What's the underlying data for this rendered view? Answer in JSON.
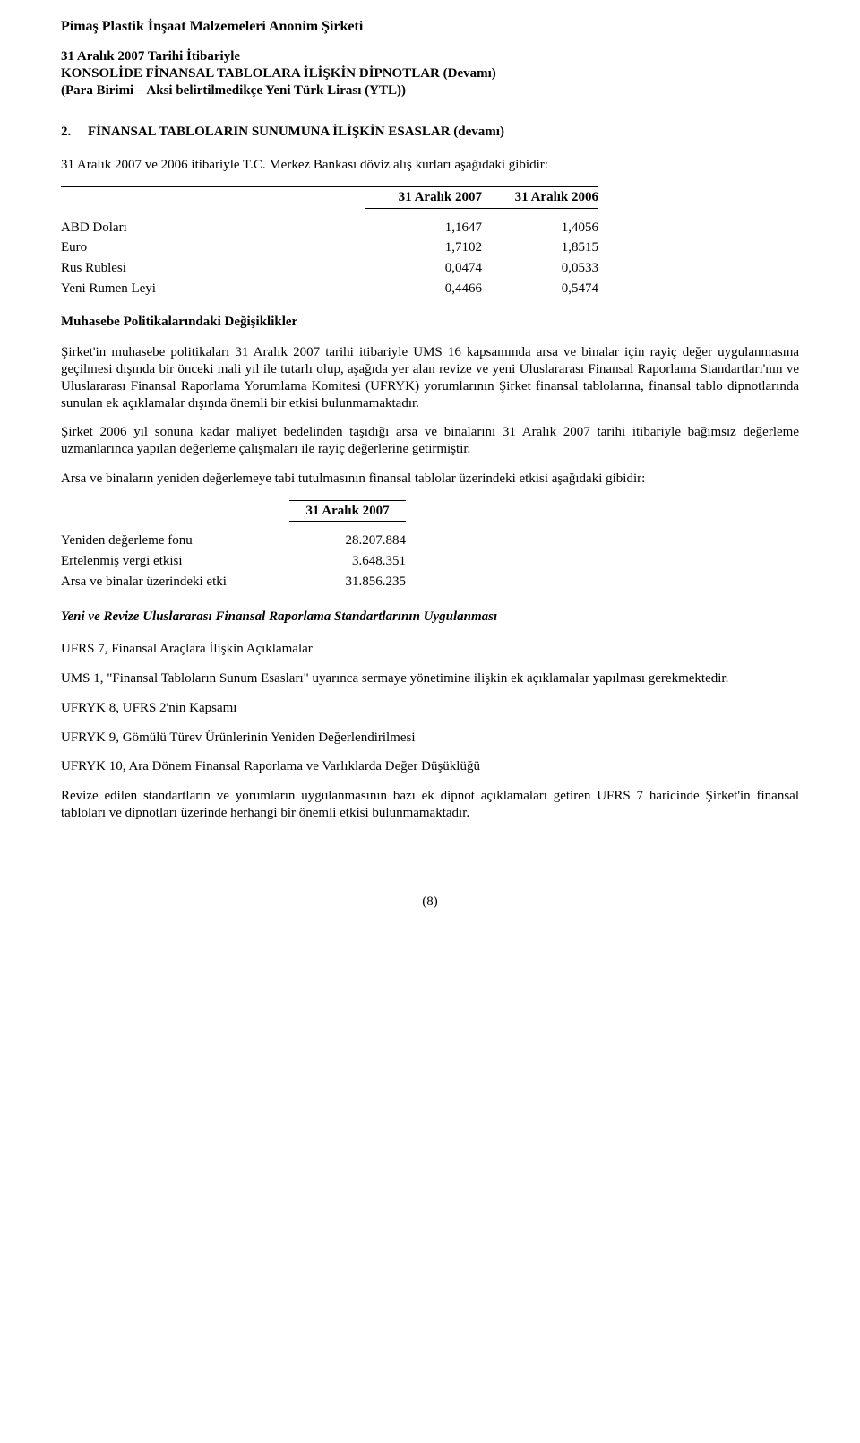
{
  "header": {
    "company": "Pimaş Plastik İnşaat Malzemeleri Anonim Şirketi",
    "line1": "31 Aralık 2007 Tarihi İtibariyle",
    "line2": "KONSOLİDE FİNANSAL TABLOLARA İLİŞKİN DİPNOTLAR (Devamı)",
    "line3": "(Para Birimi – Aksi belirtilmedikçe Yeni Türk Lirası (YTL))"
  },
  "section": {
    "num": "2.",
    "title": "FİNANSAL TABLOLARIN SUNUMUNA İLİŞKİN ESASLAR (devamı)"
  },
  "intro_line": "31 Aralık 2007 ve 2006 itibariyle T.C. Merkez Bankası döviz alış kurları aşağıdaki gibidir:",
  "curr_table": {
    "head_c1": "31 Aralık 2007",
    "head_c2": "31 Aralık 2006",
    "rows": [
      {
        "label": "ABD Doları",
        "v1": "1,1647",
        "v2": "1,4056"
      },
      {
        "label": "Euro",
        "v1": "1,7102",
        "v2": "1,8515"
      },
      {
        "label": "Rus Rublesi",
        "v1": "0,0474",
        "v2": "0,0533"
      },
      {
        "label": "Yeni Rumen Leyi",
        "v1": "0,4466",
        "v2": "0,5474"
      }
    ]
  },
  "muhasebe_heading": "Muhasebe Politikalarındaki Değişiklikler",
  "para1": "Şirket'in muhasebe politikaları 31 Aralık 2007 tarihi itibariyle UMS 16 kapsamında arsa ve binalar için rayiç değer uygulanmasına geçilmesi dışında bir önceki mali yıl ile tutarlı olup, aşağıda yer alan revize ve yeni Uluslararası Finansal Raporlama Standartları'nın ve Uluslararası Finansal Raporlama Yorumlama Komitesi (UFRYK) yorumlarının Şirket finansal tablolarına, finansal tablo dipnotlarında sunulan ek açıklamalar dışında önemli bir etkisi bulunmamaktadır.",
  "para2": "Şirket 2006 yıl sonuna kadar maliyet bedelinden taşıdığı arsa ve binalarını 31 Aralık 2007 tarihi itibariyle bağımsız değerleme uzmanlarınca yapılan değerleme çalışmaları ile rayiç değerlerine getirmiştir.",
  "para3": "Arsa ve binaların yeniden değerlemeye tabi tutulmasının finansal tablolar üzerindeki etkisi aşağıdaki gibidir:",
  "rev_table": {
    "head": "31 Aralık 2007",
    "rows": [
      {
        "label": "Yeniden değerleme fonu",
        "val": "28.207.884"
      },
      {
        "label": "Ertelenmiş vergi etkisi",
        "val": "3.648.351"
      },
      {
        "label": "Arsa ve binalar üzerindeki etki",
        "val": "31.856.235"
      }
    ]
  },
  "italic_heading": "Yeni ve Revize Uluslararası Finansal Raporlama Standartlarının Uygulanması",
  "ufrs7": "UFRS 7, Finansal Araçlara İlişkin Açıklamalar",
  "ums1": "UMS 1, \"Finansal Tabloların Sunum Esasları\" uyarınca sermaye yönetimine ilişkin ek açıklamalar yapılması gerekmektedir.",
  "ufryk8": "UFRYK 8, UFRS 2'nin Kapsamı",
  "ufryk9": "UFRYK 9, Gömülü Türev Ürünlerinin Yeniden Değerlendirilmesi",
  "ufryk10": "UFRYK 10, Ara Dönem Finansal Raporlama ve Varlıklarda Değer Düşüklüğü",
  "closing": "Revize edilen standartların ve yorumların uygulanmasının bazı ek dipnot açıklamaları getiren UFRS 7 haricinde Şirket'in finansal tabloları ve dipnotları üzerinde herhangi bir önemli etkisi bulunmamaktadır.",
  "pagenum": "(8)"
}
